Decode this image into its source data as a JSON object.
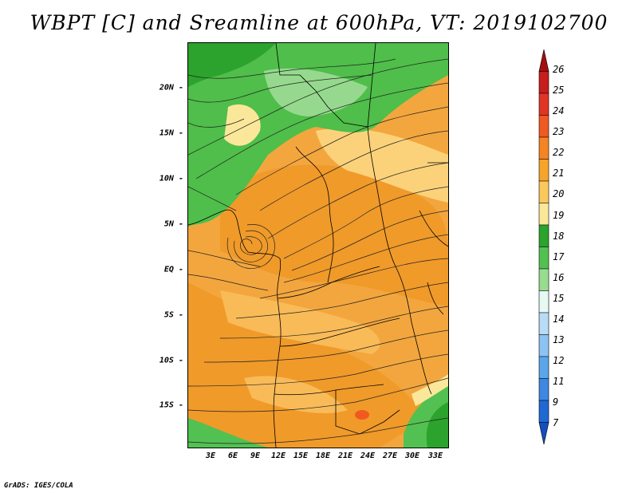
{
  "title": "WBPT [C] and Sreamline at 600hPa, VT: 2019102700",
  "map": {
    "type": "contour-fill-with-streamlines",
    "variable": "Wet-bulb potential temperature",
    "units": "C",
    "level": "600hPa",
    "valid_time": "2019102700",
    "lat_labels": [
      "20N",
      "15N",
      "10N",
      "5N",
      "EQ",
      "5S",
      "10S",
      "15S"
    ],
    "lon_labels": [
      "3E",
      "6E",
      "9E",
      "12E",
      "15E",
      "18E",
      "21E",
      "24E",
      "27E",
      "30E",
      "33E"
    ]
  },
  "colorbar": {
    "levels": [
      "26",
      "25",
      "24",
      "23",
      "22",
      "21",
      "20",
      "19",
      "18",
      "17",
      "16",
      "15",
      "14",
      "13",
      "12",
      "11",
      "9",
      "7"
    ],
    "colors": [
      "#a50f0f",
      "#c81d1d",
      "#e23424",
      "#f05a20",
      "#f58424",
      "#f6a52c",
      "#fbc85c",
      "#fbe79a",
      "#2ca32c",
      "#52c152",
      "#98dc90",
      "#e6f9f4",
      "#b8dcf6",
      "#8cc3f2",
      "#5ba5ea",
      "#3f87e2",
      "#1f69d4",
      "#1250c0"
    ]
  },
  "credit": "GrADS: IGES/COLA"
}
